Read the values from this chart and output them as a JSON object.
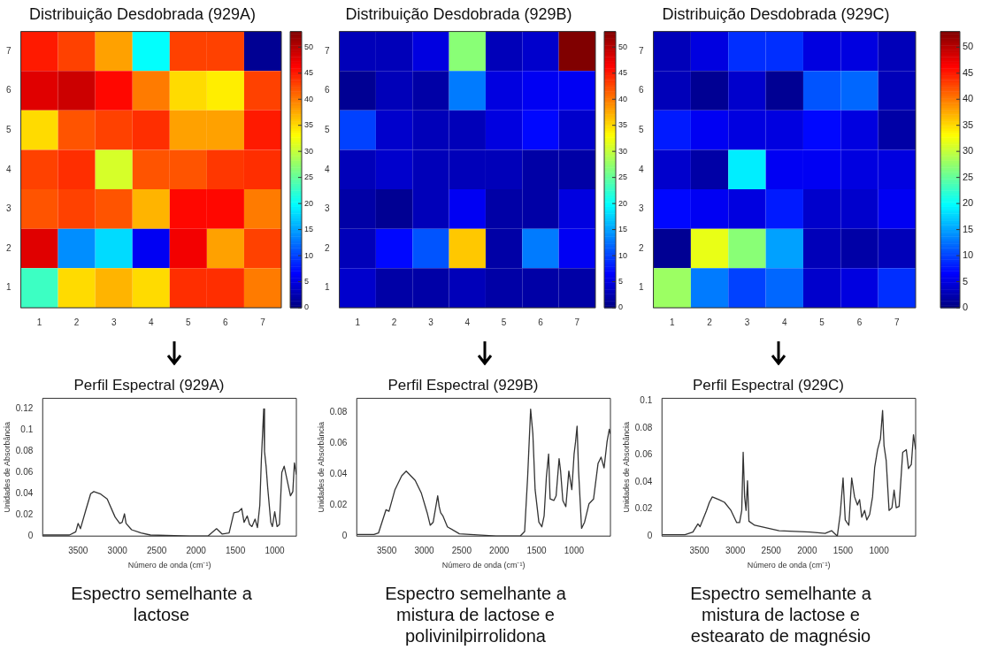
{
  "chart_data": [
    {
      "type": "heatmap",
      "title": "Distribuição Desdobrada (929A)",
      "categories": [
        "1",
        "2",
        "3",
        "4",
        "5",
        "6",
        "7"
      ],
      "y_categories": [
        "7",
        "6",
        "5",
        "4",
        "3",
        "2",
        "1"
      ],
      "clim": [
        0,
        53
      ],
      "cticks": [
        0,
        5,
        10,
        15,
        20,
        25,
        30,
        35,
        40,
        45,
        50
      ],
      "cells": [
        [
          45,
          43,
          38,
          20,
          43,
          43,
          1
        ],
        [
          48,
          49,
          46,
          40,
          35,
          34,
          43
        ],
        [
          35,
          42,
          43,
          44,
          38,
          38,
          45
        ],
        [
          43,
          44,
          31,
          42,
          42,
          43.5,
          44
        ],
        [
          42,
          43,
          42,
          37,
          46,
          46,
          40
        ],
        [
          48,
          14,
          18,
          6,
          47,
          38,
          43
        ],
        [
          23,
          35,
          37,
          35,
          44,
          44,
          40
        ]
      ]
    },
    {
      "type": "heatmap",
      "title": "Distribuição Desdobrada (929B)",
      "categories": [
        "1",
        "2",
        "3",
        "4",
        "5",
        "6",
        "7"
      ],
      "y_categories": [
        "7",
        "6",
        "5",
        "4",
        "3",
        "2",
        "1"
      ],
      "clim": [
        0,
        53
      ],
      "cticks": [
        0,
        5,
        10,
        15,
        20,
        25,
        30,
        35,
        40,
        45,
        50
      ],
      "cells": [
        [
          3,
          3,
          5,
          27,
          3,
          4,
          53
        ],
        [
          1,
          3,
          2,
          13,
          5,
          6,
          6
        ],
        [
          10,
          4,
          3,
          3,
          5,
          7,
          4
        ],
        [
          3,
          4,
          3,
          3,
          3,
          2,
          2
        ],
        [
          2,
          1,
          3,
          6,
          2,
          2,
          5
        ],
        [
          3,
          7,
          11,
          36,
          2,
          13,
          6
        ],
        [
          4,
          2,
          2,
          3,
          2,
          2,
          2
        ]
      ]
    },
    {
      "type": "heatmap",
      "title": "Distribuição Desdobrada (929C)",
      "categories": [
        "1",
        "2",
        "3",
        "4",
        "5",
        "6",
        "7"
      ],
      "y_categories": [
        "7",
        "6",
        "5",
        "4",
        "3",
        "2",
        "1"
      ],
      "clim": [
        0,
        53
      ],
      "cticks": [
        0,
        5,
        10,
        15,
        20,
        25,
        30,
        35,
        40,
        45,
        50
      ],
      "cells": [
        [
          3,
          5,
          9,
          9,
          5,
          5,
          3
        ],
        [
          3,
          1,
          4,
          1,
          11,
          12,
          3
        ],
        [
          8,
          6,
          5,
          5,
          7,
          5,
          2
        ],
        [
          4,
          2,
          19,
          6,
          6,
          5,
          5
        ],
        [
          7,
          6,
          5,
          8,
          4,
          4,
          6
        ],
        [
          1,
          32,
          27,
          15,
          3,
          2,
          3
        ],
        [
          28,
          13,
          10,
          12,
          4,
          5,
          9
        ]
      ]
    },
    {
      "type": "line",
      "title": "Perfil Espectral (929A)",
      "xlabel": "Número de onda (cm⁻¹)",
      "ylabel": "Unidades de Absorbância",
      "color": "#333333",
      "xlim": [
        3950,
        725
      ],
      "ylim": [
        0,
        0.13
      ],
      "xticks": [
        3500,
        3000,
        2500,
        2000,
        1500,
        1000
      ],
      "yticks": [
        0,
        0.02,
        0.04,
        0.06,
        0.08,
        0.1,
        0.12
      ],
      "annotations": [
        "Espectro semelhante a lactose"
      ],
      "x": [
        3950,
        3610,
        3530,
        3500,
        3470,
        3400,
        3340,
        3300,
        3220,
        3130,
        3030,
        2970,
        2940,
        2910,
        2890,
        2820,
        2700,
        2580,
        2080,
        1850,
        1740,
        1670,
        1580,
        1520,
        1460,
        1420,
        1390,
        1350,
        1320,
        1290,
        1250,
        1220,
        1190,
        1170,
        1140,
        1130,
        1110,
        1090,
        1050,
        1030,
        1000,
        970,
        940,
        910,
        880,
        840,
        800,
        770,
        750,
        725
      ],
      "values": [
        0.001,
        0.001,
        0.004,
        0.012,
        0.007,
        0.025,
        0.04,
        0.042,
        0.04,
        0.035,
        0.018,
        0.012,
        0.013,
        0.021,
        0.012,
        0.006,
        0.003,
        0.001,
        0,
        0,
        0.007,
        0.002,
        0.003,
        0.022,
        0.023,
        0.026,
        0.013,
        0.019,
        0.011,
        0.009,
        0.016,
        0.008,
        0.029,
        0.072,
        0.12,
        0.08,
        0.066,
        0.046,
        0.013,
        0.009,
        0.023,
        0.009,
        0.011,
        0.06,
        0.066,
        0.052,
        0.038,
        0.042,
        0.069,
        0.058
      ]
    },
    {
      "type": "line",
      "title": "Perfil Espectral (929B)",
      "xlabel": "Número de onda (cm⁻¹)",
      "ylabel": "Unidades de Absorbância",
      "color": "#333333",
      "xlim": [
        3900,
        515
      ],
      "ylim": [
        0,
        0.089
      ],
      "xticks": [
        3500,
        3000,
        2500,
        2000,
        1500,
        1000
      ],
      "yticks": [
        0,
        0.02,
        0.04,
        0.06,
        0.08
      ],
      "annotations": [
        "Espectro semelhante a mistura de lactose e polivinilpirrolidona"
      ],
      "x": [
        3900,
        3670,
        3610,
        3510,
        3470,
        3390,
        3300,
        3240,
        3200,
        3120,
        3040,
        2960,
        2920,
        2880,
        2820,
        2800,
        2780,
        2750,
        2690,
        2530,
        2040,
        1720,
        1660,
        1620,
        1580,
        1550,
        1520,
        1470,
        1430,
        1400,
        1370,
        1340,
        1320,
        1270,
        1240,
        1200,
        1180,
        1150,
        1110,
        1070,
        1030,
        1000,
        980,
        960,
        940,
        900,
        860,
        800,
        740,
        680,
        640,
        600,
        560,
        530,
        515
      ],
      "values": [
        0.001,
        0.001,
        0.002,
        0.017,
        0.016,
        0.03,
        0.039,
        0.042,
        0.04,
        0.036,
        0.028,
        0.015,
        0.007,
        0.009,
        0.026,
        0.019,
        0.015,
        0.013,
        0.006,
        0.0015,
        0,
        0,
        0.003,
        0.038,
        0.082,
        0.066,
        0.03,
        0.009,
        0.006,
        0.013,
        0.038,
        0.053,
        0.024,
        0.023,
        0.026,
        0.05,
        0.042,
        0.023,
        0.019,
        0.042,
        0.03,
        0.053,
        0.061,
        0.071,
        0.042,
        0.005,
        0.009,
        0.021,
        0.024,
        0.047,
        0.051,
        0.044,
        0.061,
        0.069,
        0.066
      ]
    },
    {
      "type": "line",
      "title": "Perfil Espectral (929C)",
      "xlabel": "Número de onda (cm⁻¹)",
      "ylabel": "Unidades de Absorbância",
      "color": "#333333",
      "xlim": [
        4020,
        490
      ],
      "ylim": [
        0,
        0.102
      ],
      "xticks": [
        3500,
        3000,
        2500,
        2000,
        1500,
        1000
      ],
      "yticks": [
        0,
        0.02,
        0.04,
        0.06,
        0.08,
        0.1
      ],
      "annotations": [
        "Espectro semelhante a mistura de lactose e estearato de magnésio"
      ],
      "x": [
        4020,
        3700,
        3590,
        3520,
        3490,
        3400,
        3360,
        3320,
        3230,
        3150,
        3060,
        2980,
        2940,
        2910,
        2890,
        2870,
        2850,
        2830,
        2810,
        2730,
        2390,
        1960,
        1750,
        1660,
        1580,
        1540,
        1500,
        1470,
        1420,
        1380,
        1340,
        1300,
        1270,
        1240,
        1200,
        1170,
        1130,
        1090,
        1060,
        1020,
        980,
        950,
        930,
        900,
        860,
        820,
        790,
        760,
        720,
        670,
        620,
        590,
        550,
        520,
        490
      ],
      "values": [
        0.001,
        0.001,
        0.003,
        0.009,
        0.007,
        0.019,
        0.025,
        0.029,
        0.027,
        0.025,
        0.019,
        0.01,
        0.01,
        0.019,
        0.062,
        0.029,
        0.019,
        0.041,
        0.011,
        0.008,
        0.004,
        0.003,
        0.002,
        0.004,
        0,
        0.016,
        0.043,
        0.012,
        0.008,
        0.043,
        0.029,
        0.023,
        0.027,
        0.014,
        0.019,
        0.012,
        0.016,
        0.029,
        0.051,
        0.064,
        0.072,
        0.093,
        0.067,
        0.056,
        0.019,
        0.021,
        0.034,
        0.021,
        0.022,
        0.062,
        0.064,
        0.05,
        0.053,
        0.075,
        0.064
      ]
    }
  ]
}
